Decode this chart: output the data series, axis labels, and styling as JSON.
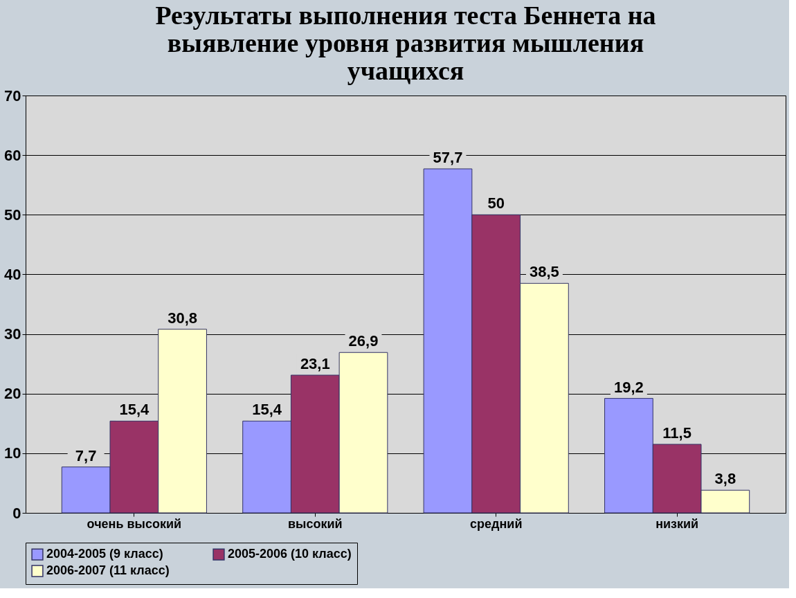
{
  "chart_data": {
    "type": "bar",
    "title": "Результаты выполнения теста Беннета на выявление уровня развития мышления учащихся",
    "categories": [
      "очень высокий",
      "высокий",
      "средний",
      "низкий"
    ],
    "series": [
      {
        "name": "2004-2005 (9 класс)",
        "color": "#9999ff",
        "values": [
          7.7,
          15.4,
          57.7,
          19.2
        ],
        "value_labels": [
          "7,7",
          "15,4",
          "57,7",
          "19,2"
        ]
      },
      {
        "name": "2005-2006 (10 класс)",
        "color": "#993366",
        "values": [
          15.4,
          23.1,
          50,
          11.5
        ],
        "value_labels": [
          "15,4",
          "23,1",
          "50",
          "11,5"
        ]
      },
      {
        "name": "2006-2007 (11 класс)",
        "color": "#ffffcc",
        "values": [
          30.8,
          26.9,
          38.5,
          3.8
        ],
        "value_labels": [
          "30,8",
          "26,9",
          "38,5",
          "3,8"
        ]
      }
    ],
    "ylim": [
      0,
      70
    ],
    "yticks": [
      0,
      10,
      20,
      30,
      40,
      50,
      60,
      70
    ],
    "grid": "y",
    "legend": "bottom"
  }
}
